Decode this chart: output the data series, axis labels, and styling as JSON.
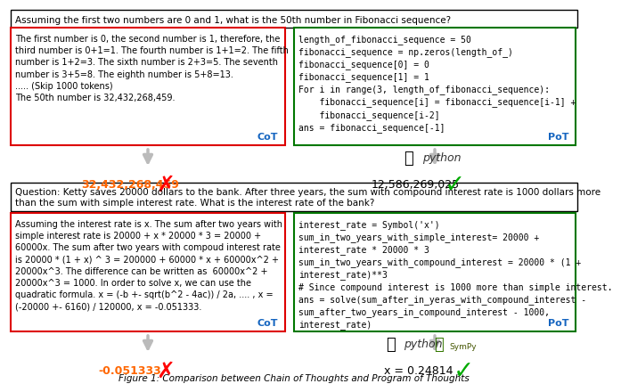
{
  "bg_color": "#ffffff",
  "question1": "Assuming the first two numbers are 0 and 1, what is the 50th number in Fibonacci sequence?",
  "question2": "Question: Ketty saves 20000 dollars to the bank. After three years, the sum with compound interest rate is 1000 dollars more\nthan the sum with simple interest rate. What is the interest rate of the bank?",
  "cot1_text": "The first number is 0, the second number is 1, therefore, the\nthird number is 0+1=1. The fourth number is 1+1=2. The fifth\nnumber is 1+2=3. The sixth number is 2+3=5. The seventh\nnumber is 3+5=8. The eighth number is 5+8=13.\n..... (Skip 1000 tokens)\nThe 50th number is 32,432,268,459.",
  "cot1_label": "CoT",
  "pot1_text": "length_of_fibonacci_sequence = 50\nfibonacci_sequence = np.zeros(length_of_)\nfibonacci_sequence[0] = 0\nfibonacci_sequence[1] = 1\nFor i in range(3, length_of_fibonacci_sequence):\n    fibonacci_sequence[i] = fibonacci_sequence[i-1] +\n    fibonacci_sequence[i-2]\nans = fibonacci_sequence[-1]",
  "pot1_label": "PoT",
  "cot1_answer": "32,432,268,459",
  "pot1_answer": "12,586,269,025",
  "cot2_text": "Assuming the interest rate is x. The sum after two years with\nsimple interest rate is 20000 + x * 20000 * 3 = 20000 +\n60000x. The sum after two years with compoud interest rate\nis 20000 * (1 + x) ^ 3 = 200000 + 60000 * x + 60000x^2 +\n20000x^3. The difference can be written as  60000x^2 +\n20000x^3 = 1000. In order to solve x, we can use the\nquadratic formula. x = (-b +- sqrt(b^2 - 4ac)) / 2a, .... , x =\n(-20000 +- 6160) / 120000, x = -0.051333.",
  "cot2_label": "CoT",
  "pot2_text": "interest_rate = Symbol('x')\nsum_in_two_years_with_simple_interest= 20000 +\ninterest_rate * 20000 * 3\nsum_in_two_years_with_compound_interest = 20000 * (1 +\ninterest_rate)**3\n# Since compound interest is 1000 more than simple interest.\nans = solve(sum_after_in_yeras_with_compound_interest -\nsum_after_two_years_in_compound_interest - 1000,\ninterest_rate)",
  "pot2_label": "PoT",
  "cot2_answer": "-0.051333",
  "pot2_answer": "x = 0.24814",
  "answer_color_wrong": "#ff6600",
  "answer_color_correct": "#000000",
  "box_color_cot": "#dd0000",
  "box_color_pot": "#007700",
  "question_box_color": "#000000",
  "caption": "Figure 1: Comparison between Chain of Thoughts and Program of Thoughts",
  "cot_label_color": "#1565c0",
  "pot_label_color": "#1565c0"
}
